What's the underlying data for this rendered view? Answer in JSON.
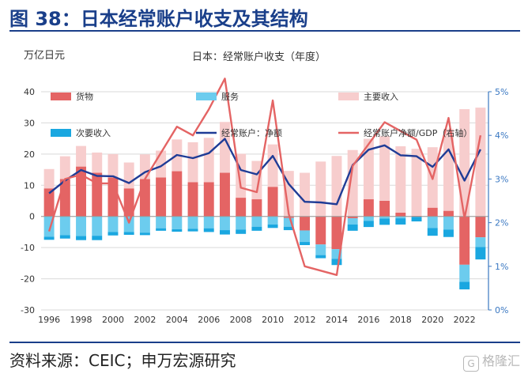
{
  "header": {
    "title": "图 38：日本经常账户收支及其结构"
  },
  "footer": {
    "source": "资料来源：CEIC；申万宏源研究",
    "watermark": "格隆汇"
  },
  "colors": {
    "goods": "#e46464",
    "services": "#6cccee",
    "primary_income": "#f7cdcd",
    "secondary_income": "#1aa7e0",
    "current_account": "#1f3c96",
    "ratio": "#e46464",
    "axis_right": "#3a78c2",
    "title": "#1a3f8a"
  },
  "chart_data": {
    "type": "bar",
    "title": "日本：经常账户收支（年度）",
    "ylabel": "万亿日元",
    "ylim": [
      -30,
      40
    ],
    "y2lim": [
      0,
      5
    ],
    "yticks": [
      40,
      30,
      20,
      10,
      0,
      -10,
      -20,
      -30
    ],
    "y2ticks": [
      "5%",
      "4%",
      "3%",
      "2%",
      "1%",
      "0%"
    ],
    "years": [
      1996,
      1997,
      1998,
      1999,
      2000,
      2001,
      2002,
      2003,
      2004,
      2005,
      2006,
      2007,
      2008,
      2009,
      2010,
      2011,
      2012,
      2013,
      2014,
      2015,
      2016,
      2017,
      2018,
      2019,
      2020,
      2021,
      2022,
      2023
    ],
    "xtick_labels": [
      "1996",
      "1998",
      "2000",
      "2002",
      "2004",
      "2006",
      "2008",
      "2010",
      "2012",
      "2014",
      "2016",
      "2018",
      "2020",
      "2022"
    ],
    "legend": {
      "goods": "货物",
      "services": "服务",
      "primary_income": "主要收入",
      "secondary_income": "次要收入",
      "current_account": "经常账户：净额",
      "ratio": "经常账户净额/GDP（右轴）"
    },
    "series": [
      {
        "name": "货物",
        "key": "goods",
        "kind": "stack",
        "values": [
          9,
          12,
          16,
          14,
          12.5,
          9,
          12,
          12.5,
          14.5,
          11,
          11,
          14,
          6,
          5.5,
          9.5,
          -0.5,
          -4.5,
          -9,
          -10.5,
          -0.6,
          5.5,
          5,
          1.2,
          0.2,
          2.8,
          1.8,
          -15.5,
          -6.7
        ]
      },
      {
        "name": "服务",
        "key": "services",
        "kind": "stack",
        "values": [
          -6.5,
          -6,
          -6.3,
          -6.2,
          -5,
          -5,
          -5.2,
          -3.8,
          -4.1,
          -4,
          -3.8,
          -4.4,
          -4.2,
          -3.3,
          -2.6,
          -2.8,
          -3.7,
          -3.4,
          -3.1,
          -2,
          -1.4,
          -0.7,
          -0.6,
          -0.2,
          -3.7,
          -4.2,
          -5.5,
          -3.1
        ]
      },
      {
        "name": "主要收入",
        "key": "primary_income",
        "kind": "stack",
        "values": [
          6.2,
          7.3,
          6.6,
          6.5,
          7.5,
          8.3,
          7.9,
          8.6,
          10.2,
          12.8,
          14.2,
          16.3,
          14.1,
          12.3,
          13.6,
          14.6,
          14,
          17.6,
          19.4,
          21.3,
          19.4,
          20.7,
          21.3,
          21.5,
          19.4,
          26.3,
          34.4,
          34.9
        ]
      },
      {
        "name": "次要收入",
        "key": "secondary_income",
        "kind": "stack",
        "values": [
          -1,
          -1.1,
          -1.3,
          -1.4,
          -1.1,
          -0.9,
          -0.8,
          -0.8,
          -0.8,
          -0.8,
          -1.2,
          -1.4,
          -1.4,
          -1.3,
          -1.1,
          -1.1,
          -1,
          -1,
          -2,
          -2,
          -2,
          -2,
          -2,
          -1.4,
          -2.5,
          -2.4,
          -2.4,
          -4
        ]
      },
      {
        "name": "经常账户：净额",
        "key": "current_account",
        "kind": "line",
        "axis": "left",
        "values": [
          7.4,
          11.5,
          14.9,
          13,
          12.9,
          10.7,
          14.2,
          16.1,
          19.7,
          18.7,
          20.3,
          24.9,
          14.9,
          13.5,
          19.4,
          10.4,
          4.7,
          4.5,
          3.9,
          16.5,
          21.4,
          22.8,
          19.6,
          19.3,
          15.9,
          21.5,
          11.5,
          21.5
        ]
      },
      {
        "name": "经常账户净额/GDP（右轴）",
        "key": "ratio",
        "kind": "line",
        "axis": "right",
        "values": [
          1.8,
          3.0,
          3.1,
          2.9,
          2.9,
          2.0,
          3.0,
          3.6,
          4.2,
          4.0,
          4.6,
          5.3,
          2.8,
          2.7,
          4.8,
          2.2,
          1.0,
          0.9,
          0.8,
          3.3,
          3.8,
          4.3,
          4.1,
          3.9,
          3.0,
          4.4,
          2.1,
          4.0
        ]
      }
    ]
  }
}
